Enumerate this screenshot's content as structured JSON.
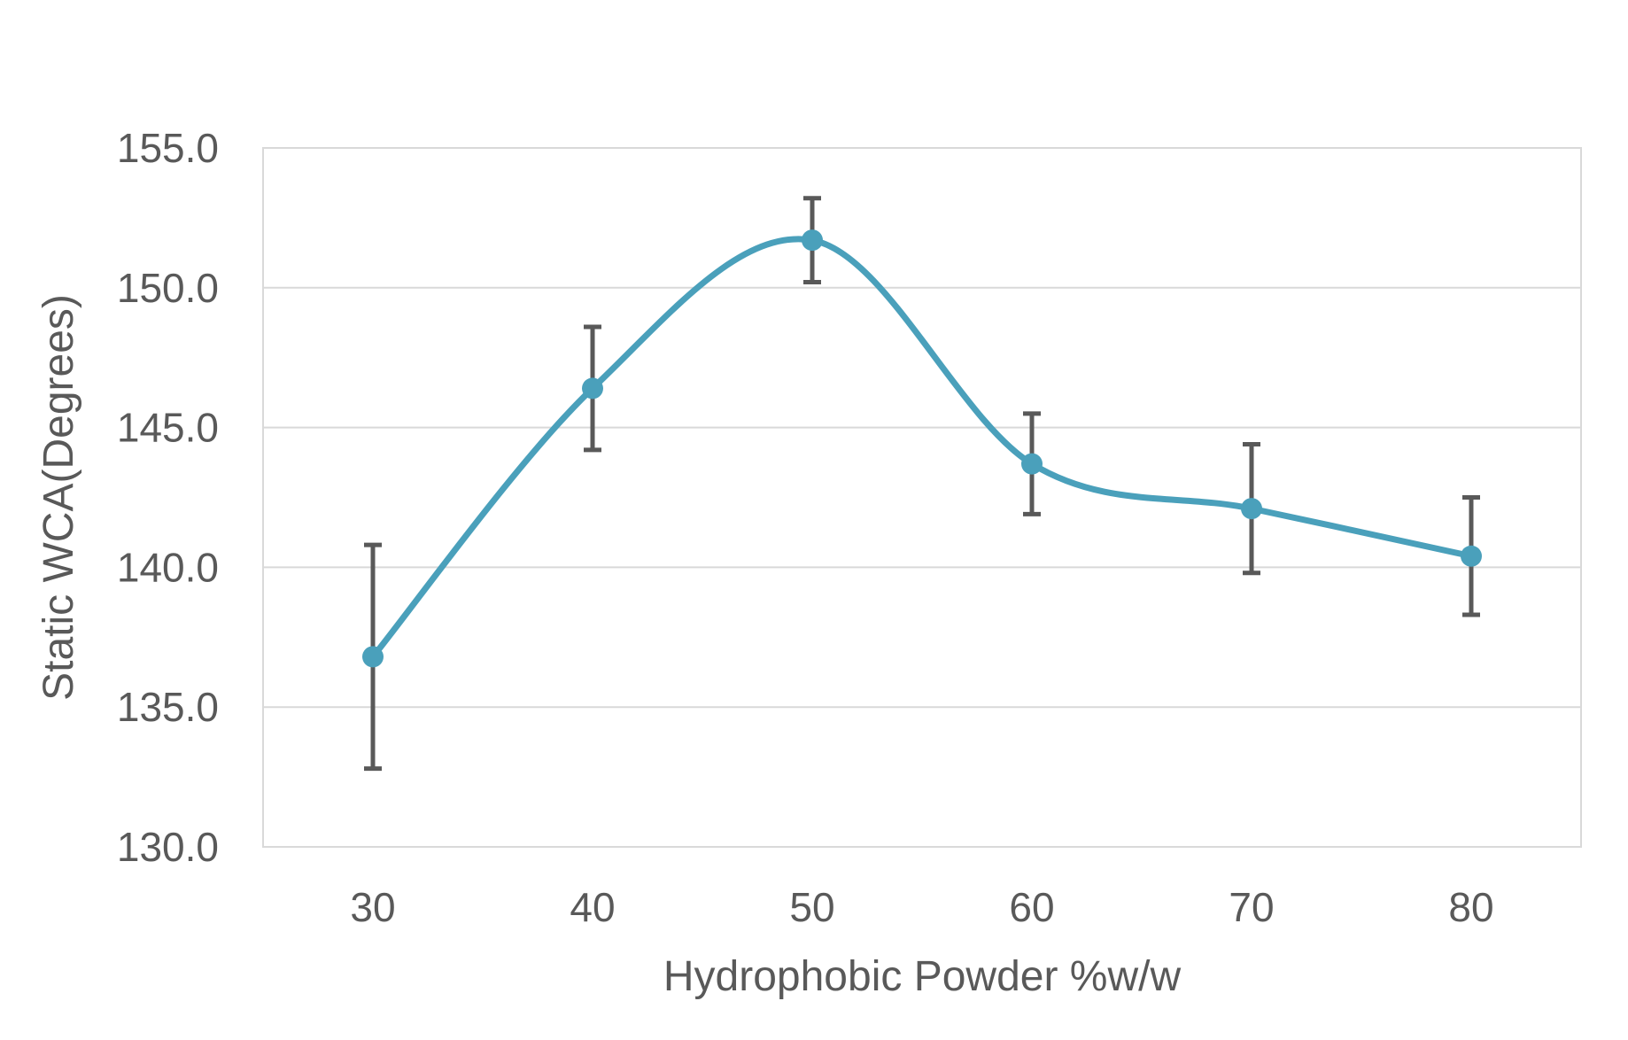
{
  "chart_data": {
    "type": "line",
    "title": "",
    "xlabel": "Hydrophobic Powder %w/w",
    "ylabel": "Static WCA(Degrees)",
    "x": [
      30,
      40,
      50,
      60,
      70,
      80
    ],
    "x_tick_labels": [
      "30",
      "40",
      "50",
      "60",
      "70",
      "80"
    ],
    "ylim": [
      130,
      155
    ],
    "y_ticks": [
      130,
      135,
      140,
      145,
      150,
      155
    ],
    "y_tick_labels": [
      "130.0",
      "135.0",
      "140.0",
      "145.0",
      "150.0",
      "155.0"
    ],
    "grid": true,
    "legend": "none",
    "smoothed": true,
    "series": [
      {
        "values": [
          136.8,
          146.4,
          151.7,
          143.7,
          142.1,
          140.4
        ],
        "error": [
          4.0,
          2.2,
          1.5,
          1.8,
          2.3,
          2.1
        ],
        "color": "#4aa0bb"
      }
    ],
    "error_bar_color": "#595959",
    "grid_color": "#d9d9d9"
  }
}
